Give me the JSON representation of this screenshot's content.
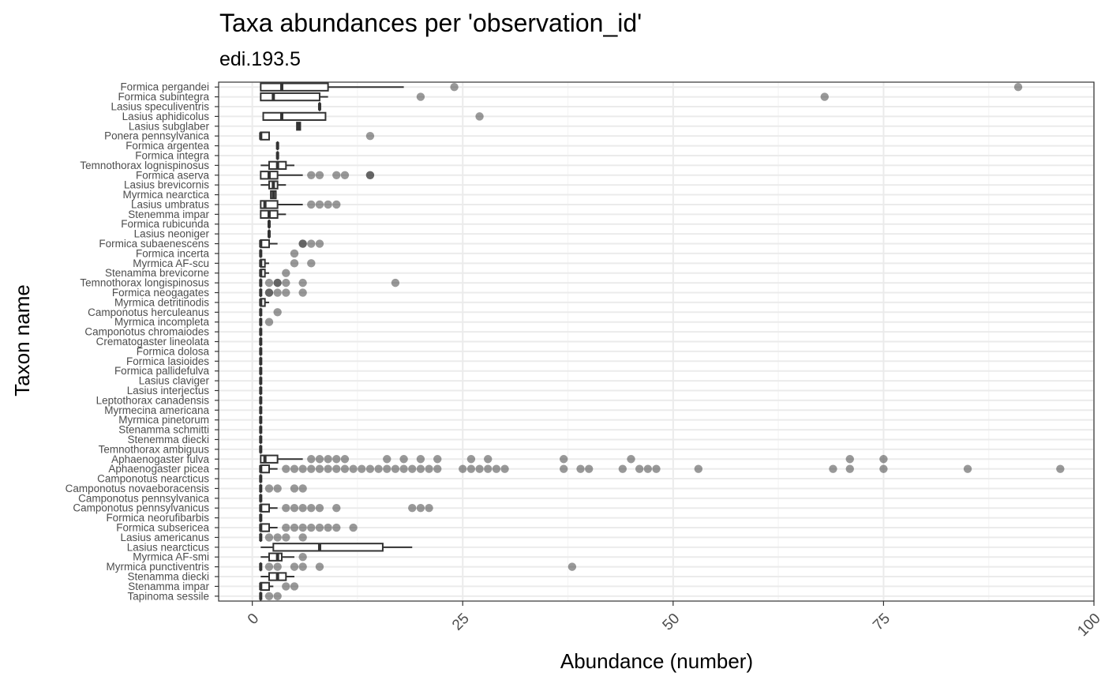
{
  "chart_data": {
    "type": "boxplot",
    "orientation": "horizontal",
    "title": "Taxa abundances per 'observation_id'",
    "subtitle": "edi.193.5",
    "xlabel": "Abundance (number)",
    "ylabel": "Taxon name",
    "xlim": [
      -4,
      100
    ],
    "xticks": [
      0,
      25,
      50,
      75,
      100
    ],
    "grid": true,
    "colors": {
      "box": "#333333",
      "outlier": "#333333",
      "grid_major": "#ebebeb",
      "grid_minor": "#f5f5f5",
      "panel_border": "#333333"
    },
    "taxa": [
      {
        "name": "Formica pergandei",
        "min": 1,
        "q1": 1,
        "median": 3.5,
        "q3": 9,
        "max": 18,
        "outliers": [
          24,
          91
        ]
      },
      {
        "name": "Formica subintegra",
        "min": 1,
        "q1": 1,
        "median": 2.5,
        "q3": 8,
        "max": 9,
        "outliers": [
          20,
          68
        ]
      },
      {
        "name": "Lasius speculiventris",
        "min": 8,
        "q1": 8,
        "median": 8,
        "q3": 8,
        "max": 8,
        "outliers": []
      },
      {
        "name": "Lasius aphidicolus",
        "min": 1.3,
        "q1": 1.3,
        "median": 3.5,
        "q3": 8.7,
        "max": 8.7,
        "outliers": [
          27
        ]
      },
      {
        "name": "Lasius subglaber",
        "min": 5.3,
        "q1": 5.3,
        "median": 5.5,
        "q3": 5.7,
        "max": 5.7,
        "outliers": []
      },
      {
        "name": "Ponera pennsylvanica",
        "min": 1,
        "q1": 1,
        "median": 1,
        "q3": 2,
        "max": 2,
        "outliers": [
          14
        ]
      },
      {
        "name": "Formica argentea",
        "min": 3,
        "q1": 3,
        "median": 3,
        "q3": 3,
        "max": 3,
        "outliers": []
      },
      {
        "name": "Formica integra",
        "min": 3,
        "q1": 3,
        "median": 3,
        "q3": 3,
        "max": 3,
        "outliers": []
      },
      {
        "name": "Temnothorax lognispinosus",
        "min": 1,
        "q1": 2,
        "median": 3,
        "q3": 4,
        "max": 5,
        "outliers": []
      },
      {
        "name": "Formica aserva",
        "min": 1,
        "q1": 1,
        "median": 2,
        "q3": 3,
        "max": 6,
        "outliers": [
          7,
          8,
          10,
          11,
          14,
          14
        ]
      },
      {
        "name": "Lasius brevicornis",
        "min": 1,
        "q1": 2,
        "median": 2.5,
        "q3": 3,
        "max": 4,
        "outliers": []
      },
      {
        "name": "Myrmica nearctica",
        "min": 2.2,
        "q1": 2.2,
        "median": 2.5,
        "q3": 2.8,
        "max": 2.8,
        "outliers": []
      },
      {
        "name": "Lasius umbratus",
        "min": 1,
        "q1": 1,
        "median": 1.5,
        "q3": 3,
        "max": 6,
        "outliers": [
          7,
          8,
          9,
          10
        ]
      },
      {
        "name": "Stenemma impar",
        "min": 1,
        "q1": 1,
        "median": 2,
        "q3": 3,
        "max": 4,
        "outliers": []
      },
      {
        "name": "Formica rubicunda",
        "min": 2,
        "q1": 2,
        "median": 2,
        "q3": 2,
        "max": 2,
        "outliers": []
      },
      {
        "name": "Lasius neoniger",
        "min": 2,
        "q1": 2,
        "median": 2,
        "q3": 2,
        "max": 2,
        "outliers": []
      },
      {
        "name": "Formica subaenescens",
        "min": 1,
        "q1": 1,
        "median": 1,
        "q3": 2,
        "max": 3,
        "outliers": [
          6,
          6,
          7,
          8
        ]
      },
      {
        "name": "Formica incerta",
        "min": 1,
        "q1": 1,
        "median": 1,
        "q3": 1,
        "max": 1,
        "outliers": [
          5
        ]
      },
      {
        "name": "Myrmica AF-scu",
        "min": 1,
        "q1": 1,
        "median": 1,
        "q3": 1.5,
        "max": 2,
        "outliers": [
          5,
          7
        ]
      },
      {
        "name": "Stenamma brevicorne",
        "min": 1,
        "q1": 1,
        "median": 1,
        "q3": 1.5,
        "max": 2,
        "outliers": [
          4
        ]
      },
      {
        "name": "Temnothorax longispinosus",
        "min": 1,
        "q1": 1,
        "median": 1,
        "q3": 1,
        "max": 1,
        "outliers": [
          2,
          3,
          3,
          4,
          6,
          17
        ]
      },
      {
        "name": "Formica neogagates",
        "min": 1,
        "q1": 1,
        "median": 1,
        "q3": 1,
        "max": 1,
        "outliers": [
          2,
          2,
          3,
          4,
          6
        ]
      },
      {
        "name": "Myrmica detritinodis",
        "min": 1,
        "q1": 1,
        "median": 1,
        "q3": 1.5,
        "max": 2,
        "outliers": []
      },
      {
        "name": "Camponotus herculeanus",
        "min": 1,
        "q1": 1,
        "median": 1,
        "q3": 1,
        "max": 1,
        "outliers": [
          3
        ]
      },
      {
        "name": "Myrmica incompleta",
        "min": 1,
        "q1": 1,
        "median": 1,
        "q3": 1,
        "max": 1,
        "outliers": [
          2
        ]
      },
      {
        "name": "Camponotus chromaiodes",
        "min": 1,
        "q1": 1,
        "median": 1,
        "q3": 1,
        "max": 1,
        "outliers": []
      },
      {
        "name": "Crematogaster lineolata",
        "min": 1,
        "q1": 1,
        "median": 1,
        "q3": 1,
        "max": 1,
        "outliers": []
      },
      {
        "name": "Formica dolosa",
        "min": 1,
        "q1": 1,
        "median": 1,
        "q3": 1,
        "max": 1,
        "outliers": []
      },
      {
        "name": "Formica lasioides",
        "min": 1,
        "q1": 1,
        "median": 1,
        "q3": 1,
        "max": 1,
        "outliers": []
      },
      {
        "name": "Formica pallidefulva",
        "min": 1,
        "q1": 1,
        "median": 1,
        "q3": 1,
        "max": 1,
        "outliers": []
      },
      {
        "name": "Lasius claviger",
        "min": 1,
        "q1": 1,
        "median": 1,
        "q3": 1,
        "max": 1,
        "outliers": []
      },
      {
        "name": "Lasius interjectus",
        "min": 1,
        "q1": 1,
        "median": 1,
        "q3": 1,
        "max": 1,
        "outliers": []
      },
      {
        "name": "Leptothorax canadensis",
        "min": 1,
        "q1": 1,
        "median": 1,
        "q3": 1,
        "max": 1,
        "outliers": []
      },
      {
        "name": "Myrmecina americana",
        "min": 1,
        "q1": 1,
        "median": 1,
        "q3": 1,
        "max": 1,
        "outliers": []
      },
      {
        "name": "Myrmica pinetorum",
        "min": 1,
        "q1": 1,
        "median": 1,
        "q3": 1,
        "max": 1,
        "outliers": []
      },
      {
        "name": "Stenamma schmitti",
        "min": 1,
        "q1": 1,
        "median": 1,
        "q3": 1,
        "max": 1,
        "outliers": []
      },
      {
        "name": "Stenemma diecki",
        "min": 1,
        "q1": 1,
        "median": 1,
        "q3": 1,
        "max": 1,
        "outliers": []
      },
      {
        "name": "Temnothorax ambiguus",
        "min": 1,
        "q1": 1,
        "median": 1,
        "q3": 1,
        "max": 1,
        "outliers": []
      },
      {
        "name": "Aphaenogaster fulva",
        "min": 1,
        "q1": 1,
        "median": 1.5,
        "q3": 3,
        "max": 6,
        "outliers": [
          7,
          8,
          9,
          10,
          11,
          16,
          18,
          20,
          22,
          26,
          28,
          37,
          45,
          71,
          75
        ]
      },
      {
        "name": "Aphaenogaster picea",
        "min": 1,
        "q1": 1,
        "median": 1,
        "q3": 2,
        "max": 3,
        "outliers": [
          4,
          5,
          6,
          7,
          8,
          9,
          10,
          11,
          12,
          13,
          14,
          15,
          16,
          17,
          18,
          19,
          20,
          21,
          22,
          25,
          26,
          27,
          28,
          29,
          30,
          37,
          39,
          40,
          44,
          46,
          47,
          48,
          53,
          69,
          71,
          75,
          85,
          96
        ]
      },
      {
        "name": "Camponotus nearcticus",
        "min": 1,
        "q1": 1,
        "median": 1,
        "q3": 1,
        "max": 1,
        "outliers": []
      },
      {
        "name": "Camponotus novaeboracensis",
        "min": 1,
        "q1": 1,
        "median": 1,
        "q3": 1,
        "max": 1,
        "outliers": [
          2,
          3,
          5,
          6
        ]
      },
      {
        "name": "Camponotus pennsylvanica",
        "min": 1,
        "q1": 1,
        "median": 1,
        "q3": 1,
        "max": 1,
        "outliers": []
      },
      {
        "name": "Camponotus pennsylvanicus",
        "min": 1,
        "q1": 1,
        "median": 1,
        "q3": 2,
        "max": 3,
        "outliers": [
          4,
          5,
          6,
          7,
          8,
          10,
          19,
          20,
          21
        ]
      },
      {
        "name": "Formica neorufibarbis",
        "min": 1,
        "q1": 1,
        "median": 1,
        "q3": 1,
        "max": 1,
        "outliers": []
      },
      {
        "name": "Formica subsericea",
        "min": 1,
        "q1": 1,
        "median": 1,
        "q3": 2,
        "max": 3,
        "outliers": [
          4,
          5,
          6,
          7,
          8,
          9,
          10,
          12
        ]
      },
      {
        "name": "Lasius americanus",
        "min": 1,
        "q1": 1,
        "median": 1,
        "q3": 1,
        "max": 1,
        "outliers": [
          2,
          3,
          4,
          6
        ]
      },
      {
        "name": "Lasius nearcticus",
        "min": 1,
        "q1": 2.5,
        "median": 8,
        "q3": 15.5,
        "max": 19,
        "outliers": []
      },
      {
        "name": "Myrmica AF-smi",
        "min": 1,
        "q1": 2,
        "median": 3,
        "q3": 3.5,
        "max": 5,
        "outliers": [
          6
        ]
      },
      {
        "name": "Myrmica punctiventris",
        "min": 1,
        "q1": 1,
        "median": 1,
        "q3": 1,
        "max": 1,
        "outliers": [
          2,
          3,
          5,
          6,
          8,
          38
        ]
      },
      {
        "name": "Stenamma diecki",
        "min": 1,
        "q1": 2,
        "median": 3,
        "q3": 4,
        "max": 5,
        "outliers": []
      },
      {
        "name": "Stenamma impar",
        "min": 1,
        "q1": 1,
        "median": 1,
        "q3": 2,
        "max": 2.5,
        "outliers": [
          4,
          5
        ]
      },
      {
        "name": "Tapinoma sessile",
        "min": 1,
        "q1": 1,
        "median": 1,
        "q3": 1,
        "max": 1,
        "outliers": [
          2,
          3
        ]
      }
    ]
  }
}
